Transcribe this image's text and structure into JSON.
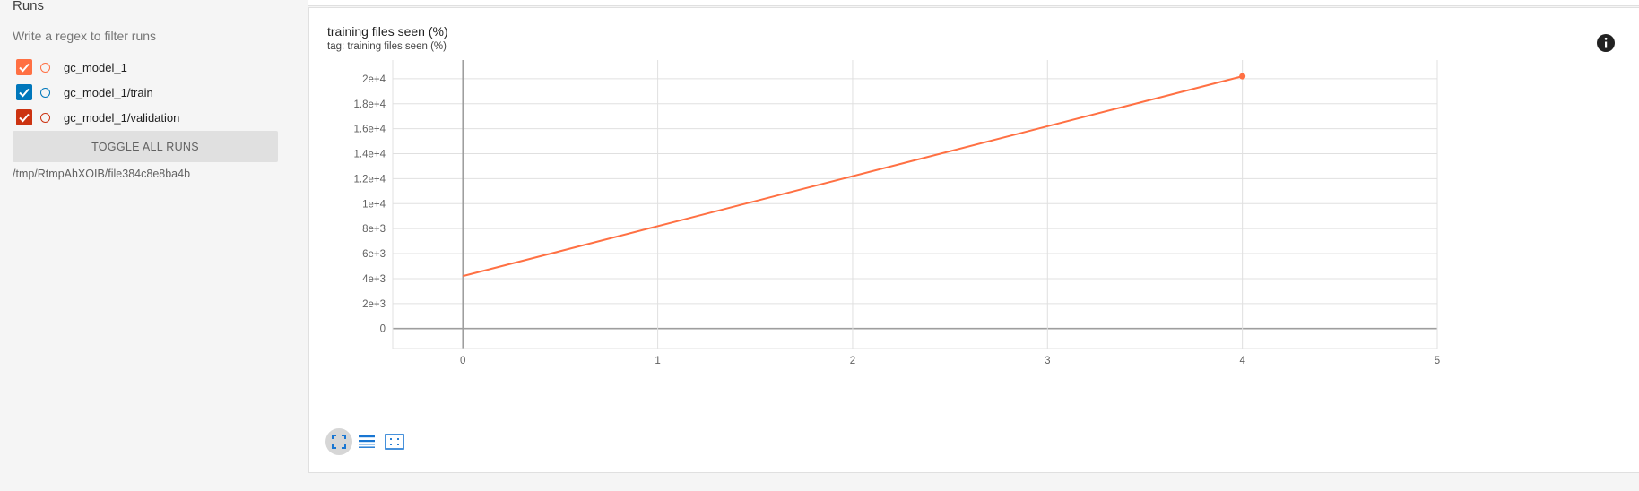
{
  "sidebar": {
    "title": "Runs",
    "filter": {
      "placeholder": "Write a regex to filter runs",
      "value": ""
    },
    "runs": [
      {
        "label": "gc_model_1",
        "checked": true,
        "color": "#ff7043"
      },
      {
        "label": "gc_model_1/train",
        "checked": true,
        "color": "#0077bb"
      },
      {
        "label": "gc_model_1/validation",
        "checked": true,
        "color": "#cc3311"
      }
    ],
    "toggle_label": "TOGGLE ALL RUNS",
    "log_dir": "/tmp/RtmpAhXOIB/file384c8e8ba4b"
  },
  "card": {
    "title": "training files seen (%)",
    "tag": "tag: training files seen (%)",
    "info_icon": "info-icon",
    "tools": [
      "fit-domain-icon",
      "toggle-log-scale-icon",
      "toggle-selection-icon"
    ]
  },
  "chart_data": {
    "type": "line",
    "title": "training files seen (%)",
    "xlabel": "",
    "ylabel": "",
    "xlim": [
      -0.36,
      5
    ],
    "ylim": [
      -1600,
      21500
    ],
    "x_ticks": [
      "0",
      "1",
      "2",
      "3",
      "4",
      "5"
    ],
    "y_ticks": [
      "0",
      "2e+3",
      "4e+3",
      "6e+3",
      "8e+3",
      "1e+4",
      "1.2e+4",
      "1.4e+4",
      "1.6e+4",
      "1.8e+4",
      "2e+4"
    ],
    "grid": true,
    "series": [
      {
        "color": "#ff7043",
        "x": [
          0,
          4
        ],
        "y": [
          4200,
          20200
        ]
      }
    ]
  }
}
